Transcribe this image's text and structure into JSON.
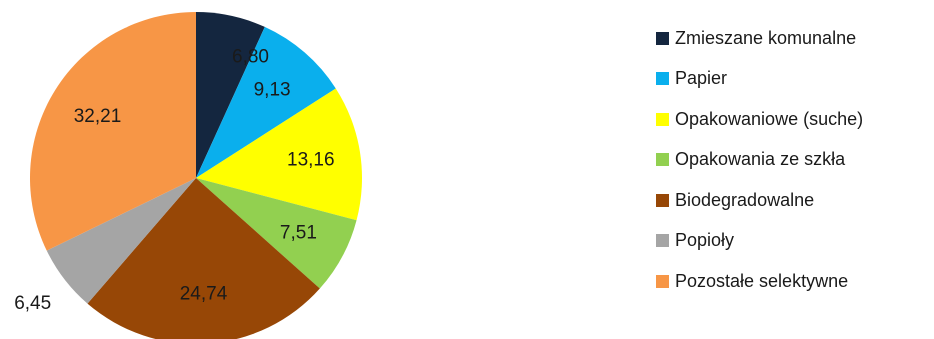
{
  "chart_data": {
    "type": "pie",
    "title": "",
    "start_angle_deg": 0,
    "direction": "clockwise",
    "legend_position": "right",
    "slices": [
      {
        "label": "Zmieszane komunalne",
        "value": 6.8,
        "display": "6,80",
        "color": "#14263f"
      },
      {
        "label": "Papier",
        "value": 9.13,
        "display": "9,13",
        "color": "#0aafed"
      },
      {
        "label": "Opakowaniowe (suche)",
        "value": 13.16,
        "display": "13,16",
        "color": "#ffff00"
      },
      {
        "label": "Opakowania ze szkła",
        "value": 7.51,
        "display": "7,51",
        "color": "#92d050"
      },
      {
        "label": "Biodegradowalne",
        "value": 24.74,
        "display": "24,74",
        "color": "#974706"
      },
      {
        "label": "Popioły",
        "value": 6.45,
        "display": "6,45",
        "color": "#a5a5a5"
      },
      {
        "label": "Pozostałe selektywne",
        "value": 32.21,
        "display": "32,21",
        "color": "#f79646"
      }
    ]
  }
}
